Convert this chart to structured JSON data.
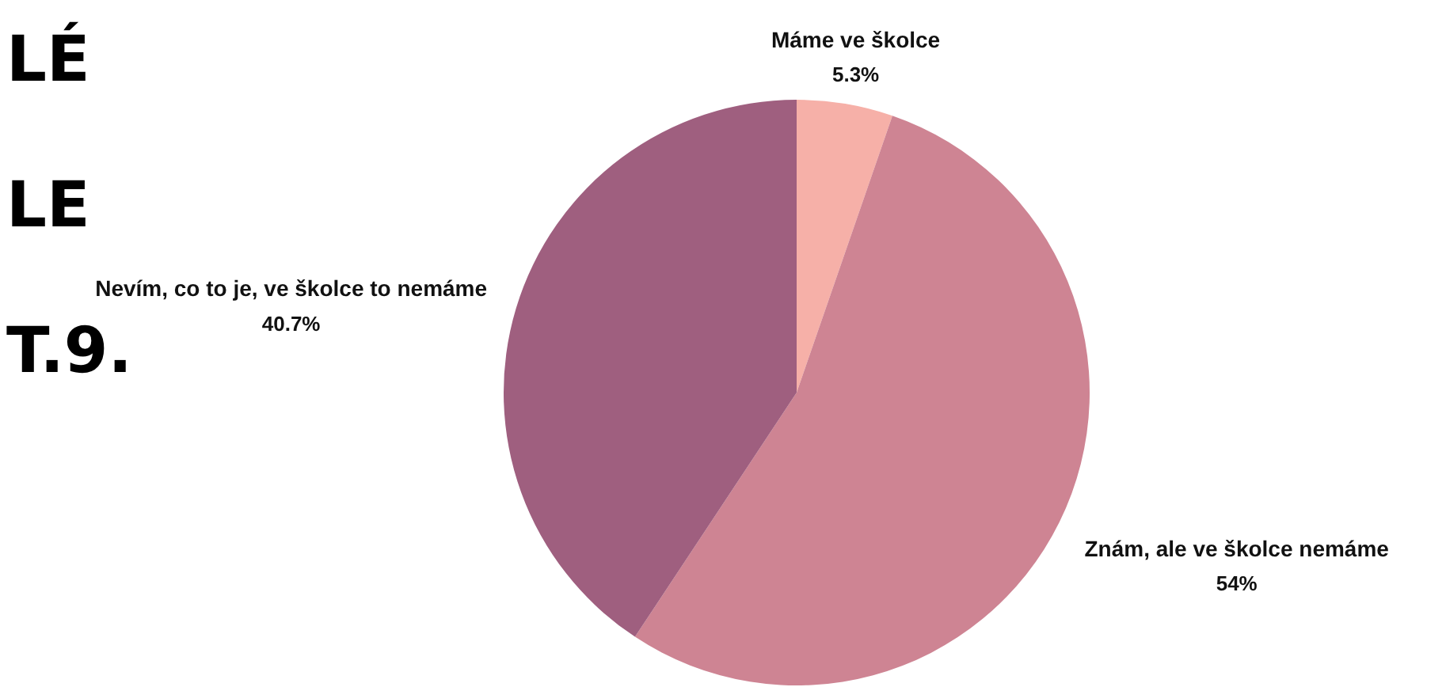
{
  "chart_data": {
    "type": "pie",
    "categories": [
      "Máme ve školce",
      "Znám, ale ve školce nemáme",
      "Nevím, co to je, ve školce to nemáme"
    ],
    "values": [
      5.3,
      54,
      40.7
    ],
    "colors": [
      "#f6b0a8",
      "#ce8493",
      "#9f5f7f"
    ],
    "value_labels": [
      "5.3%",
      "54%",
      "40.7%"
    ],
    "legend": false,
    "annotations": [
      "LÉ",
      "LE",
      "T.9."
    ]
  }
}
